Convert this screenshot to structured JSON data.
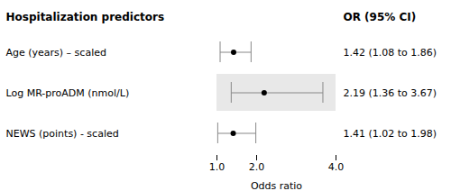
{
  "chart_data": {
    "type": "forest",
    "title": "Hospitalization predictors",
    "annotations": [
      "OR (95% CI)"
    ],
    "categories": [
      "Age (years) – scaled",
      "Log MR-proADM (nmol/L)",
      "NEWS (points) - scaled"
    ],
    "values": [
      1.42,
      2.19,
      1.41
    ],
    "ci_low": [
      1.08,
      1.36,
      1.02
    ],
    "ci_high": [
      1.86,
      3.67,
      1.98
    ],
    "value_labels": [
      "1.42 (1.08 to 1.86)",
      "2.19 (1.36 to 3.67)",
      "1.41 (1.02 to 1.98)"
    ],
    "data_labels": true,
    "xlabel": "Odds ratio",
    "xlim": [
      1.0,
      4.0
    ],
    "xticks": [
      {
        "value": 1.0,
        "label": "1.0"
      },
      {
        "value": 2.0,
        "label": "2.0"
      },
      {
        "value": 4.0,
        "label": "4.0"
      }
    ],
    "grid": false
  }
}
